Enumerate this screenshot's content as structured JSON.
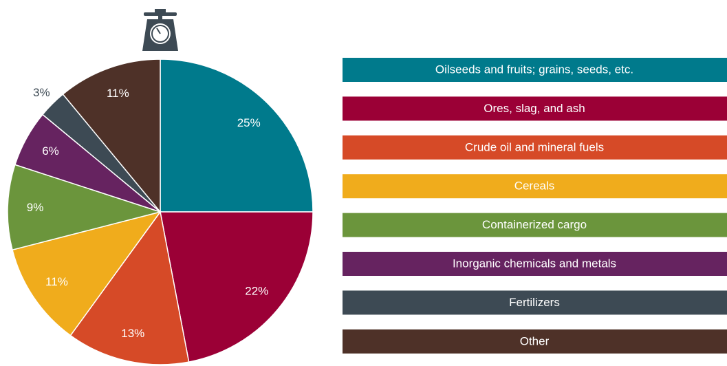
{
  "chart_data": {
    "type": "pie",
    "categories": [
      "Oilseeds and fruits; grains, seeds, etc.",
      "Ores, slag, and ash",
      "Crude oil and mineral fuels",
      "Cereals",
      "Containerized cargo",
      "Inorganic chemicals and metals",
      "Fertilizers",
      "Other"
    ],
    "values": [
      25,
      22,
      13,
      11,
      9,
      6,
      3,
      11
    ],
    "value_labels": [
      "25%",
      "22%",
      "13%",
      "11%",
      "9%",
      "6%",
      "3%",
      "11%"
    ],
    "colors": [
      "#007a8c",
      "#9b0036",
      "#d64a27",
      "#f0ac1c",
      "#6b953c",
      "#662360",
      "#3d4a54",
      "#4e3128"
    ]
  }
}
